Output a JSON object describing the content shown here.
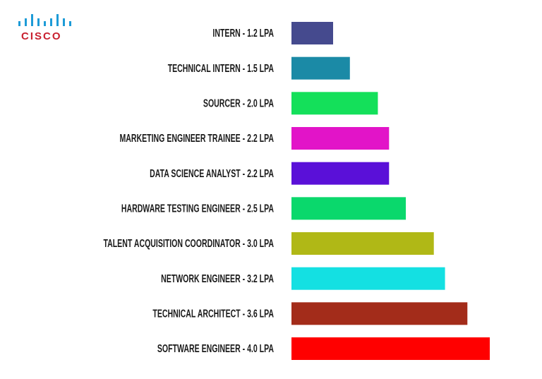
{
  "logo": "CISCO",
  "chart_data": {
    "type": "hbar",
    "categories": [
      "INTERN - 1.2 LPA",
      "TECHNICAL INTERN - 1.5 LPA",
      "SOURCER - 2.0 LPA",
      "MARKETING ENGINEER TRAINEE - 2.2 LPA",
      "DATA SCIENCE ANALYST - 2.2 LPA",
      "HARDWARE TESTING ENGINEER - 2.5 LPA",
      "TALENT ACQUISITION COORDINATOR - 3.0 LPA",
      "NETWORK ENGINEER - 3.2 LPA",
      "TECHNICAL ARCHITECT - 3.6 LPA",
      "SOFTWARE ENGINEER - 4.0 LPA"
    ],
    "values": [
      1.2,
      1.5,
      2.0,
      2.2,
      2.2,
      2.5,
      3.0,
      3.2,
      3.6,
      4.0
    ],
    "colors": [
      "#454a8e",
      "#1b8aa6",
      "#14e05a",
      "#e214c8",
      "#5a10d8",
      "#0ad86c",
      "#b0b816",
      "#14e0e2",
      "#a32c1a",
      "#ff0000"
    ]
  }
}
